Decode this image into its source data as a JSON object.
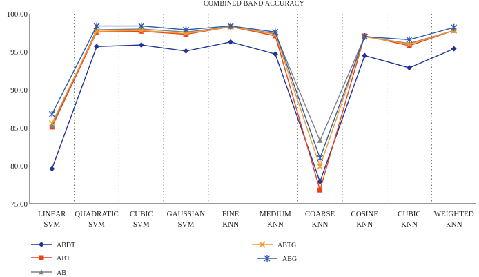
{
  "chart_data": {
    "type": "line",
    "title": "COMBINED BAND ACCURACY",
    "xlabel": "",
    "ylabel": "",
    "ylim": [
      75,
      100
    ],
    "yticks": [
      "75.00",
      "80.00",
      "85.00",
      "90.00",
      "95.00",
      "100.00"
    ],
    "categories": [
      [
        "LINEAR",
        "SVM"
      ],
      [
        "QUADRATIC",
        "SVM"
      ],
      [
        "CUBIC",
        "SVM"
      ],
      [
        "GAUSSIAN",
        "SVM"
      ],
      [
        "FINE",
        "KNN"
      ],
      [
        "MEDIUM",
        "KNN"
      ],
      [
        "COARSE",
        "KNN"
      ],
      [
        "COSINE",
        "KNN"
      ],
      [
        "CUBIC",
        "KNN"
      ],
      [
        "WEIGHTED",
        "KNN"
      ]
    ],
    "grid": "vertical dotted separators between categories",
    "legend_position": "bottom",
    "series": [
      {
        "name": "ABDT",
        "color": "#1f3494",
        "marker": "diamond",
        "values": [
          79.6,
          95.7,
          95.9,
          95.1,
          96.3,
          94.7,
          77.9,
          94.5,
          92.9,
          95.4
        ]
      },
      {
        "name": "ABT",
        "color": "#e8421a",
        "marker": "square",
        "values": [
          85.1,
          97.6,
          97.7,
          97.3,
          98.3,
          97.1,
          76.8,
          97.1,
          95.8,
          97.8
        ]
      },
      {
        "name": "AB",
        "color": "#808080",
        "marker": "triangle",
        "values": [
          85.3,
          97.9,
          98.0,
          97.6,
          98.3,
          97.4,
          83.3,
          97.0,
          96.1,
          97.8
        ]
      },
      {
        "name": "ABTG",
        "color": "#f29a2e",
        "marker": "x",
        "values": [
          85.6,
          97.7,
          97.8,
          97.4,
          98.3,
          97.3,
          79.9,
          97.0,
          96.0,
          97.8
        ]
      },
      {
        "name": "ABG",
        "color": "#2e5aa8",
        "marker": "star",
        "values": [
          86.8,
          98.4,
          98.4,
          97.9,
          98.4,
          97.6,
          81.0,
          97.0,
          96.6,
          98.2
        ]
      }
    ]
  }
}
